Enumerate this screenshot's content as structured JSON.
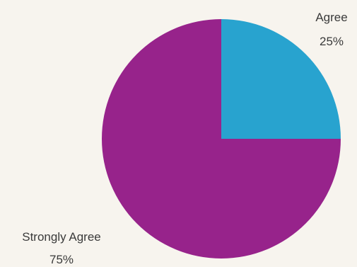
{
  "chart_data": {
    "type": "pie",
    "categories": [
      "Agree",
      "Strongly Agree"
    ],
    "values": [
      25,
      75
    ],
    "labels": [
      "25%",
      "75%"
    ],
    "colors": [
      "#28a3cf",
      "#97238b"
    ],
    "start_angle": "12 o'clock",
    "direction": "clockwise",
    "legend": "none (data labels outside slices)"
  }
}
